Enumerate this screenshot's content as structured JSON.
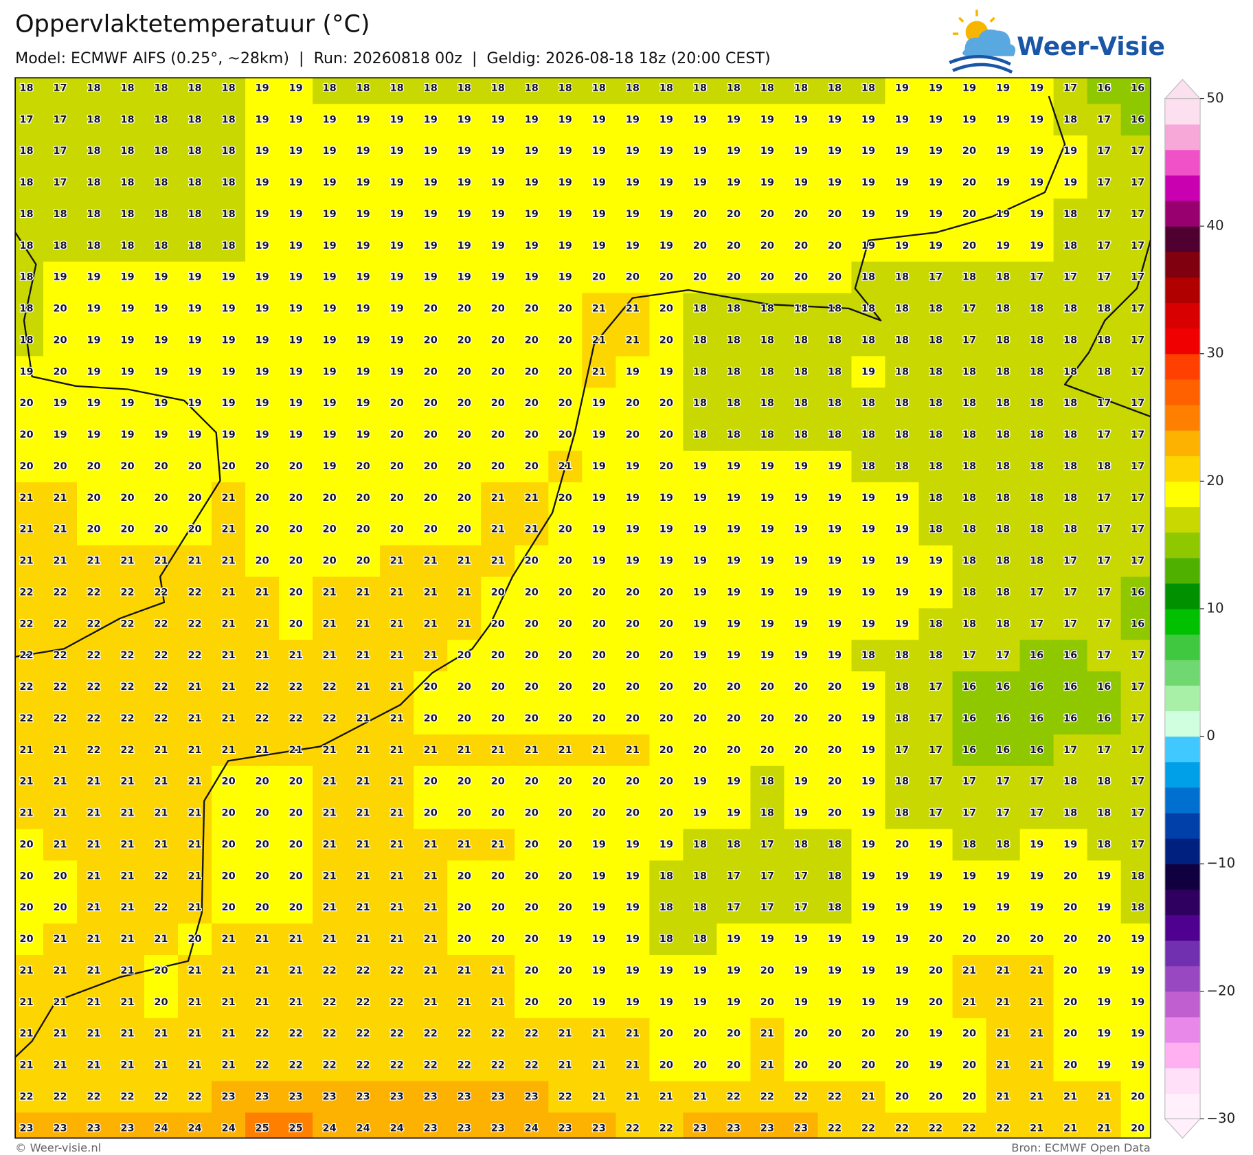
{
  "header": {
    "title": "Oppervlaktetemperatuur (°C)",
    "subtitle": "Model: ECMWF AIFS (0.25°, ~28km)  |  Run: 20260818 00z  |  Geldig: 2026-08-18 18z (20:00 CEST)"
  },
  "logo": {
    "text": "Weer-Visie"
  },
  "map": {
    "grid": [
      [
        18,
        17,
        18,
        18,
        18,
        18,
        18,
        19,
        19,
        18,
        18,
        18,
        18,
        18,
        18,
        18,
        18,
        18,
        18,
        18,
        18,
        18,
        18,
        18,
        18,
        18,
        19,
        19,
        19,
        19,
        19,
        17,
        16,
        16
      ],
      [
        17,
        17,
        18,
        18,
        18,
        18,
        18,
        19,
        19,
        19,
        19,
        19,
        19,
        19,
        19,
        19,
        19,
        19,
        19,
        19,
        19,
        19,
        19,
        19,
        19,
        19,
        19,
        19,
        19,
        19,
        19,
        18,
        17,
        16
      ],
      [
        18,
        17,
        18,
        18,
        18,
        18,
        18,
        19,
        19,
        19,
        19,
        19,
        19,
        19,
        19,
        19,
        19,
        19,
        19,
        19,
        19,
        19,
        19,
        19,
        19,
        19,
        19,
        19,
        20,
        19,
        19,
        19,
        17,
        17
      ],
      [
        18,
        17,
        18,
        18,
        18,
        18,
        18,
        19,
        19,
        19,
        19,
        19,
        19,
        19,
        19,
        19,
        19,
        19,
        19,
        19,
        19,
        19,
        19,
        19,
        19,
        19,
        19,
        19,
        20,
        19,
        19,
        19,
        17,
        17
      ],
      [
        18,
        18,
        18,
        18,
        18,
        18,
        18,
        19,
        19,
        19,
        19,
        19,
        19,
        19,
        19,
        19,
        19,
        19,
        19,
        19,
        20,
        20,
        20,
        20,
        20,
        19,
        19,
        19,
        20,
        19,
        19,
        18,
        17,
        17
      ],
      [
        18,
        18,
        18,
        18,
        18,
        18,
        18,
        19,
        19,
        19,
        19,
        19,
        19,
        19,
        19,
        19,
        19,
        19,
        19,
        19,
        20,
        20,
        20,
        20,
        20,
        19,
        19,
        19,
        20,
        19,
        19,
        18,
        17,
        17
      ],
      [
        18,
        19,
        19,
        19,
        19,
        19,
        19,
        19,
        19,
        19,
        19,
        19,
        19,
        19,
        19,
        19,
        19,
        20,
        20,
        20,
        20,
        20,
        20,
        20,
        20,
        18,
        18,
        17,
        18,
        18,
        17,
        17,
        17,
        17
      ],
      [
        18,
        20,
        19,
        19,
        19,
        19,
        19,
        19,
        19,
        19,
        19,
        19,
        20,
        20,
        20,
        20,
        20,
        21,
        21,
        20,
        18,
        18,
        18,
        18,
        18,
        18,
        18,
        18,
        17,
        18,
        18,
        18,
        18,
        17
      ],
      [
        18,
        20,
        19,
        19,
        19,
        19,
        19,
        19,
        19,
        19,
        19,
        19,
        20,
        20,
        20,
        20,
        20,
        21,
        21,
        20,
        18,
        18,
        18,
        18,
        18,
        18,
        18,
        18,
        17,
        18,
        18,
        18,
        18,
        17
      ],
      [
        19,
        20,
        19,
        19,
        19,
        19,
        19,
        19,
        19,
        19,
        19,
        19,
        20,
        20,
        20,
        20,
        20,
        21,
        19,
        19,
        18,
        18,
        18,
        18,
        18,
        19,
        18,
        18,
        18,
        18,
        18,
        18,
        18,
        17
      ],
      [
        20,
        19,
        19,
        19,
        19,
        19,
        19,
        19,
        19,
        19,
        19,
        20,
        20,
        20,
        20,
        20,
        20,
        19,
        20,
        20,
        18,
        18,
        18,
        18,
        18,
        18,
        18,
        18,
        18,
        18,
        18,
        18,
        17,
        17
      ],
      [
        20,
        19,
        19,
        19,
        19,
        19,
        19,
        19,
        19,
        19,
        19,
        20,
        20,
        20,
        20,
        20,
        20,
        19,
        20,
        20,
        18,
        18,
        18,
        18,
        18,
        18,
        18,
        18,
        18,
        18,
        18,
        18,
        17,
        17
      ],
      [
        20,
        20,
        20,
        20,
        20,
        20,
        20,
        20,
        20,
        19,
        20,
        20,
        20,
        20,
        20,
        20,
        21,
        19,
        19,
        20,
        19,
        19,
        19,
        19,
        19,
        18,
        18,
        18,
        18,
        18,
        18,
        18,
        18,
        17
      ],
      [
        21,
        21,
        20,
        20,
        20,
        20,
        21,
        20,
        20,
        20,
        20,
        20,
        20,
        20,
        21,
        21,
        20,
        19,
        19,
        19,
        19,
        19,
        19,
        19,
        19,
        19,
        19,
        18,
        18,
        18,
        18,
        18,
        17,
        17
      ],
      [
        21,
        21,
        20,
        20,
        20,
        20,
        21,
        20,
        20,
        20,
        20,
        20,
        20,
        20,
        21,
        21,
        20,
        19,
        19,
        19,
        19,
        19,
        19,
        19,
        19,
        19,
        19,
        18,
        18,
        18,
        18,
        18,
        17,
        17
      ],
      [
        21,
        21,
        21,
        21,
        21,
        21,
        21,
        20,
        20,
        20,
        20,
        21,
        21,
        21,
        21,
        20,
        20,
        19,
        19,
        19,
        19,
        19,
        19,
        19,
        19,
        19,
        19,
        19,
        18,
        18,
        18,
        17,
        17,
        17
      ],
      [
        22,
        22,
        22,
        22,
        22,
        22,
        21,
        21,
        20,
        21,
        21,
        21,
        21,
        21,
        20,
        20,
        20,
        20,
        20,
        20,
        19,
        19,
        19,
        19,
        19,
        19,
        19,
        19,
        18,
        18,
        17,
        17,
        17,
        16
      ],
      [
        22,
        22,
        22,
        22,
        22,
        22,
        21,
        21,
        20,
        21,
        21,
        21,
        21,
        21,
        20,
        20,
        20,
        20,
        20,
        20,
        19,
        19,
        19,
        19,
        19,
        19,
        19,
        18,
        18,
        18,
        17,
        17,
        17,
        16
      ],
      [
        22,
        22,
        22,
        22,
        22,
        22,
        21,
        21,
        21,
        21,
        21,
        21,
        21,
        20,
        20,
        20,
        20,
        20,
        20,
        20,
        19,
        19,
        19,
        19,
        19,
        18,
        18,
        18,
        17,
        17,
        16,
        16,
        17,
        17
      ],
      [
        22,
        22,
        22,
        22,
        22,
        21,
        21,
        22,
        22,
        22,
        21,
        21,
        20,
        20,
        20,
        20,
        20,
        20,
        20,
        20,
        20,
        20,
        20,
        20,
        20,
        19,
        18,
        17,
        16,
        16,
        16,
        16,
        16,
        17
      ],
      [
        22,
        22,
        22,
        22,
        22,
        21,
        21,
        22,
        22,
        22,
        21,
        21,
        20,
        20,
        20,
        20,
        20,
        20,
        20,
        20,
        20,
        20,
        20,
        20,
        20,
        19,
        18,
        17,
        16,
        16,
        16,
        16,
        16,
        17
      ],
      [
        21,
        21,
        22,
        22,
        21,
        21,
        21,
        21,
        21,
        21,
        21,
        21,
        21,
        21,
        21,
        21,
        21,
        21,
        21,
        20,
        20,
        20,
        20,
        20,
        20,
        19,
        17,
        17,
        16,
        16,
        16,
        17,
        17,
        17
      ],
      [
        21,
        21,
        21,
        21,
        21,
        21,
        20,
        20,
        20,
        21,
        21,
        21,
        20,
        20,
        20,
        20,
        20,
        20,
        20,
        20,
        19,
        19,
        18,
        19,
        20,
        19,
        18,
        17,
        17,
        17,
        17,
        18,
        18,
        17
      ],
      [
        21,
        21,
        21,
        21,
        21,
        21,
        20,
        20,
        20,
        21,
        21,
        21,
        20,
        20,
        20,
        20,
        20,
        20,
        20,
        20,
        19,
        19,
        18,
        19,
        20,
        19,
        18,
        17,
        17,
        17,
        17,
        18,
        18,
        17
      ],
      [
        20,
        21,
        21,
        21,
        21,
        21,
        20,
        20,
        20,
        21,
        21,
        21,
        21,
        21,
        21,
        20,
        20,
        19,
        19,
        19,
        18,
        18,
        17,
        18,
        18,
        19,
        20,
        19,
        18,
        18,
        19,
        19,
        18,
        17
      ],
      [
        20,
        20,
        21,
        21,
        22,
        21,
        20,
        20,
        20,
        21,
        21,
        21,
        21,
        20,
        20,
        20,
        20,
        19,
        19,
        18,
        18,
        17,
        17,
        17,
        18,
        19,
        19,
        19,
        19,
        19,
        19,
        20,
        19,
        18
      ],
      [
        20,
        20,
        21,
        21,
        22,
        21,
        20,
        20,
        20,
        21,
        21,
        21,
        21,
        20,
        20,
        20,
        20,
        19,
        19,
        18,
        18,
        17,
        17,
        17,
        18,
        19,
        19,
        19,
        19,
        19,
        19,
        20,
        19,
        18
      ],
      [
        20,
        21,
        21,
        21,
        21,
        20,
        21,
        21,
        21,
        21,
        21,
        21,
        21,
        20,
        20,
        20,
        19,
        19,
        19,
        18,
        18,
        19,
        19,
        19,
        19,
        19,
        19,
        20,
        20,
        20,
        20,
        20,
        20,
        19
      ],
      [
        21,
        21,
        21,
        21,
        20,
        21,
        21,
        21,
        21,
        22,
        22,
        22,
        21,
        21,
        21,
        20,
        20,
        19,
        19,
        19,
        19,
        19,
        20,
        19,
        19,
        19,
        19,
        20,
        21,
        21,
        21,
        20,
        19,
        19
      ],
      [
        21,
        21,
        21,
        21,
        20,
        21,
        21,
        21,
        21,
        22,
        22,
        22,
        21,
        21,
        21,
        20,
        20,
        19,
        19,
        19,
        19,
        19,
        20,
        19,
        19,
        19,
        19,
        20,
        21,
        21,
        21,
        20,
        19,
        19
      ],
      [
        21,
        21,
        21,
        21,
        21,
        21,
        21,
        22,
        22,
        22,
        22,
        22,
        22,
        22,
        22,
        22,
        21,
        21,
        21,
        20,
        20,
        20,
        21,
        20,
        20,
        20,
        20,
        19,
        20,
        21,
        21,
        20,
        19,
        19
      ],
      [
        21,
        21,
        21,
        21,
        21,
        21,
        21,
        22,
        22,
        22,
        22,
        22,
        22,
        22,
        22,
        22,
        21,
        21,
        21,
        20,
        20,
        20,
        21,
        20,
        20,
        20,
        20,
        19,
        20,
        21,
        21,
        20,
        19,
        19
      ],
      [
        22,
        22,
        22,
        22,
        22,
        22,
        23,
        23,
        23,
        23,
        23,
        23,
        23,
        23,
        23,
        23,
        22,
        21,
        21,
        21,
        21,
        22,
        22,
        22,
        22,
        21,
        20,
        20,
        20,
        21,
        21,
        21,
        21,
        20
      ],
      [
        23,
        23,
        23,
        23,
        24,
        24,
        24,
        25,
        25,
        24,
        24,
        24,
        23,
        23,
        23,
        24,
        23,
        23,
        22,
        22,
        23,
        23,
        23,
        23,
        22,
        22,
        22,
        22,
        22,
        22,
        21,
        21,
        21,
        20
      ]
    ],
    "colorbar": {
      "lim": [
        -30,
        50
      ],
      "ticks": [
        50,
        40,
        30,
        20,
        10,
        0,
        {
          "value": -10,
          "label": "−10"
        },
        {
          "value": -20,
          "label": "−20"
        },
        {
          "value": -30,
          "label": "−30"
        }
      ],
      "colors": [
        "#fff0fc",
        "#ffe0f8",
        "#ffb0f0",
        "#e888e8",
        "#c060d0",
        "#9848c0",
        "#7030b0",
        "#500090",
        "#300060",
        "#100040",
        "#002080",
        "#0040a8",
        "#0070d0",
        "#00a0e8",
        "#40c8ff",
        "#d0ffe0",
        "#a8f0a8",
        "#70d870",
        "#40c840",
        "#00c000",
        "#009000",
        "#50b000",
        "#90c800",
        "#c8d800",
        "#ffff00",
        "#fdd500",
        "#fdb100",
        "#ff8000",
        "#ff6000",
        "#ff4000",
        "#f00000",
        "#d80000",
        "#b00000",
        "#800010",
        "#500030",
        "#980070",
        "#c800b0",
        "#f050c8",
        "#f7a8d8",
        "#fde0f0"
      ]
    }
  },
  "footer": {
    "left": "© Weer-visie.nl",
    "right": "Bron: ECMWF Open Data"
  }
}
